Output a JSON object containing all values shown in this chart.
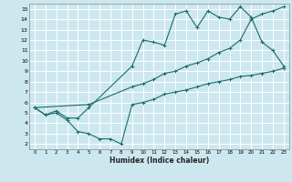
{
  "xlabel": "Humidex (Indice chaleur)",
  "bg_color": "#cce8ee",
  "grid_color": "#ffffff",
  "line_color": "#1a6b6b",
  "xlim": [
    -0.5,
    23.5
  ],
  "ylim": [
    1.5,
    15.5
  ],
  "xticks": [
    0,
    1,
    2,
    3,
    4,
    5,
    6,
    7,
    8,
    9,
    10,
    11,
    12,
    13,
    14,
    15,
    16,
    17,
    18,
    19,
    20,
    21,
    22,
    23
  ],
  "yticks": [
    2,
    3,
    4,
    5,
    6,
    7,
    8,
    9,
    10,
    11,
    12,
    13,
    14,
    15
  ],
  "line1_x": [
    0,
    1,
    2,
    3,
    4,
    5,
    9,
    10,
    11,
    12,
    13,
    14,
    15,
    16,
    17,
    18,
    19,
    20,
    21,
    22,
    23
  ],
  "line1_y": [
    5.5,
    4.8,
    5.2,
    4.5,
    4.5,
    5.5,
    9.5,
    12.0,
    11.8,
    11.5,
    14.5,
    14.8,
    13.2,
    14.8,
    14.2,
    14.0,
    15.2,
    14.2,
    11.8,
    11.0,
    9.5
  ],
  "line2_x": [
    0,
    5,
    9,
    10,
    11,
    12,
    13,
    14,
    15,
    16,
    17,
    18,
    19,
    20,
    21,
    22,
    23
  ],
  "line2_y": [
    5.5,
    5.8,
    7.5,
    7.8,
    8.2,
    8.8,
    9.0,
    9.5,
    9.8,
    10.2,
    10.8,
    11.2,
    12.0,
    14.0,
    14.5,
    14.8,
    15.2
  ],
  "line3_x": [
    0,
    1,
    2,
    3,
    4,
    5,
    6,
    7,
    8,
    9,
    10,
    11,
    12,
    13,
    14,
    15,
    16,
    17,
    18,
    19,
    20,
    21,
    22,
    23
  ],
  "line3_y": [
    5.5,
    4.8,
    5.0,
    4.3,
    3.2,
    3.0,
    2.5,
    2.5,
    2.0,
    5.8,
    6.0,
    6.3,
    6.8,
    7.0,
    7.2,
    7.5,
    7.8,
    8.0,
    8.2,
    8.5,
    8.6,
    8.8,
    9.0,
    9.3
  ]
}
